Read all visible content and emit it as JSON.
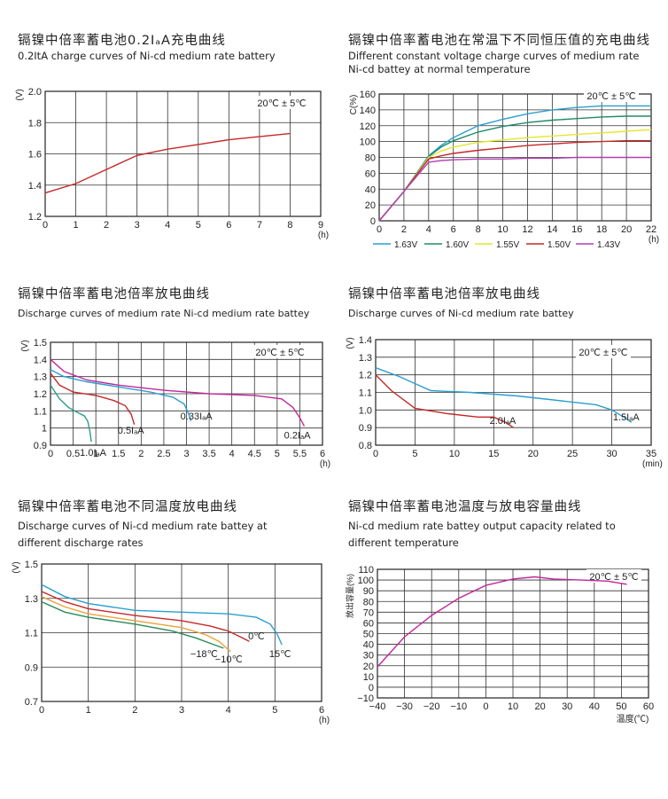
{
  "chart_data": [
    {
      "type": "line",
      "title": "镉镍中倍率蓄电池0.2IₐA充电曲线",
      "subtitle": "0.2ItA charge curves of Ni-cd  medium rate battery",
      "ylabel": "(V)",
      "xunit": "(h)",
      "xlim": [
        0,
        9
      ],
      "ylim": [
        1.2,
        2.0
      ],
      "xticks": [
        "0",
        "1",
        "2",
        "3",
        "4",
        "5",
        "6",
        "7",
        "8",
        "9"
      ],
      "yticks": [
        "1.2",
        "1.4",
        "1.6",
        "1.8",
        "2.0"
      ],
      "annotation": "20℃ ± 5℃",
      "grid": true,
      "series": [
        {
          "color": "#c62828",
          "points": [
            [
              0,
              1.35
            ],
            [
              1,
              1.41
            ],
            [
              2,
              1.5
            ],
            [
              3,
              1.59
            ],
            [
              4,
              1.63
            ],
            [
              5,
              1.66
            ],
            [
              6,
              1.69
            ],
            [
              7,
              1.71
            ],
            [
              8,
              1.73
            ]
          ]
        }
      ]
    },
    {
      "type": "line",
      "title": "镉镍中倍率蓄电池在常温下不同恒压值的充电曲线",
      "subtitle": "Different constant voltage charge curves of medium rate\nNi-cd battey at normal temperature",
      "ylabel": "C(%)",
      "xunit": "(h)",
      "xlim": [
        0,
        22
      ],
      "ylim": [
        0,
        160
      ],
      "xticks": [
        "0",
        "2",
        "4",
        "6",
        "8",
        "10",
        "12",
        "14",
        "16",
        "18",
        "20",
        "22"
      ],
      "yticks": [
        "0",
        "20",
        "40",
        "60",
        "80",
        "100",
        "120",
        "140",
        "160"
      ],
      "annotation": "20℃ ± 5℃",
      "grid": true,
      "series": [
        {
          "name": "1.63V",
          "color": "#2a9fd0",
          "points": [
            [
              0,
              0
            ],
            [
              2,
              37
            ],
            [
              4,
              82
            ],
            [
              5,
              95
            ],
            [
              6,
              105
            ],
            [
              8,
              120
            ],
            [
              10,
              128
            ],
            [
              12,
              135
            ],
            [
              14,
              140
            ],
            [
              16,
              143
            ],
            [
              18,
              145
            ],
            [
              20,
              145
            ],
            [
              22,
              145
            ]
          ]
        },
        {
          "name": "1.60V",
          "color": "#1f8a6a",
          "points": [
            [
              0,
              0
            ],
            [
              2,
              37
            ],
            [
              4,
              81
            ],
            [
              5,
              93
            ],
            [
              6,
              101
            ],
            [
              8,
              112
            ],
            [
              10,
              119
            ],
            [
              12,
              124
            ],
            [
              14,
              127
            ],
            [
              16,
              129
            ],
            [
              18,
              131
            ],
            [
              20,
              132
            ],
            [
              22,
              132
            ]
          ]
        },
        {
          "name": "1.55V",
          "color": "#e6e62e",
          "points": [
            [
              0,
              0
            ],
            [
              2,
              37
            ],
            [
              4,
              80
            ],
            [
              5,
              88
            ],
            [
              6,
              93
            ],
            [
              8,
              99
            ],
            [
              10,
              102
            ],
            [
              12,
              105
            ],
            [
              14,
              107
            ],
            [
              16,
              109
            ],
            [
              18,
              111
            ],
            [
              20,
              113
            ],
            [
              22,
              115
            ]
          ]
        },
        {
          "name": "1.50V",
          "color": "#c62828",
          "points": [
            [
              0,
              0
            ],
            [
              2,
              37
            ],
            [
              4,
              78
            ],
            [
              5,
              82
            ],
            [
              6,
              85
            ],
            [
              8,
              89
            ],
            [
              10,
              92
            ],
            [
              12,
              95
            ],
            [
              14,
              97
            ],
            [
              16,
              99
            ],
            [
              18,
              100
            ],
            [
              20,
              101
            ],
            [
              22,
              101
            ]
          ]
        },
        {
          "name": "1.43V",
          "color": "#b23fb0",
          "points": [
            [
              0,
              0
            ],
            [
              2,
              37
            ],
            [
              4,
              74
            ],
            [
              5,
              76
            ],
            [
              6,
              77
            ],
            [
              8,
              78
            ],
            [
              10,
              78
            ],
            [
              12,
              79
            ],
            [
              14,
              79
            ],
            [
              16,
              80
            ],
            [
              18,
              80
            ],
            [
              20,
              80
            ],
            [
              22,
              80
            ]
          ]
        }
      ]
    },
    {
      "type": "line",
      "title": "镉镍中倍率蓄电池倍率放电曲线",
      "subtitle": "Discharge curves of medium rate Ni-cd  medium rate battey",
      "ylabel": "(V)",
      "xunit": "(h)",
      "xlim": [
        0,
        6
      ],
      "ylim": [
        0.9,
        1.5
      ],
      "xticks": [
        "0",
        "0.5",
        "1",
        "1.5",
        "2",
        "2.5",
        "3",
        "3.5",
        "4",
        "4.5",
        "5",
        "5.5",
        "6"
      ],
      "yticks": [
        "0.9",
        "1",
        "1.1",
        "1.2",
        "1.3",
        "1.4",
        "1.5"
      ],
      "annotation": "20℃ ± 5℃",
      "grid": true,
      "series": [
        {
          "label": "1.0IₐA",
          "color": "#2a9f8a",
          "points": [
            [
              0,
              1.25
            ],
            [
              0.2,
              1.17
            ],
            [
              0.4,
              1.12
            ],
            [
              0.6,
              1.09
            ],
            [
              0.75,
              1.07
            ],
            [
              0.82,
              1.04
            ],
            [
              0.87,
              0.98
            ],
            [
              0.9,
              0.92
            ]
          ]
        },
        {
          "label": "0.5IₐA",
          "color": "#c62828",
          "points": [
            [
              0,
              1.32
            ],
            [
              0.2,
              1.25
            ],
            [
              0.5,
              1.21
            ],
            [
              1,
              1.19
            ],
            [
              1.4,
              1.16
            ],
            [
              1.65,
              1.13
            ],
            [
              1.78,
              1.08
            ],
            [
              1.85,
              1.02
            ]
          ]
        },
        {
          "label": "0.33IₐA",
          "color": "#2a9fd0",
          "points": [
            [
              0,
              1.34
            ],
            [
              0.3,
              1.3
            ],
            [
              0.8,
              1.27
            ],
            [
              1.5,
              1.24
            ],
            [
              2.2,
              1.21
            ],
            [
              2.7,
              1.18
            ],
            [
              2.95,
              1.14
            ],
            [
              3.05,
              1.08
            ],
            [
              3.1,
              1.04
            ]
          ]
        },
        {
          "label": "0.2IₐA",
          "color": "#c2279b",
          "points": [
            [
              0,
              1.4
            ],
            [
              0.3,
              1.33
            ],
            [
              0.8,
              1.28
            ],
            [
              1.5,
              1.25
            ],
            [
              2.5,
              1.22
            ],
            [
              3.5,
              1.2
            ],
            [
              4.5,
              1.19
            ],
            [
              5.1,
              1.17
            ],
            [
              5.35,
              1.12
            ],
            [
              5.5,
              1.06
            ],
            [
              5.6,
              1.01
            ]
          ]
        }
      ]
    },
    {
      "type": "line",
      "title": "镉镍中倍率蓄电池倍率放电曲线",
      "subtitle": "Discharge curves of  Ni-cd medium rate battey",
      "ylabel": "(V)",
      "xunit": "(min)",
      "xlim": [
        0,
        35
      ],
      "ylim": [
        0.8,
        1.4
      ],
      "xticks": [
        "0",
        "5",
        "10",
        "15",
        "20",
        "25",
        "30",
        "35"
      ],
      "yticks": [
        "0.8",
        "0.9",
        "1.0",
        "1.1",
        "1.2",
        "1.3",
        "1.4"
      ],
      "annotation": "20℃ ± 5℃",
      "grid": true,
      "series": [
        {
          "label": "1.5IₐA",
          "color": "#2a9fd0",
          "points": [
            [
              0,
              1.24
            ],
            [
              3,
              1.19
            ],
            [
              7,
              1.11
            ],
            [
              12,
              1.1
            ],
            [
              18,
              1.08
            ],
            [
              24,
              1.05
            ],
            [
              28,
              1.03
            ],
            [
              30,
              1.0
            ],
            [
              31.5,
              0.96
            ],
            [
              32.5,
              0.93
            ]
          ]
        },
        {
          "label": "2.0IₐA",
          "color": "#c62828",
          "points": [
            [
              0,
              1.2
            ],
            [
              2,
              1.11
            ],
            [
              5,
              1.01
            ],
            [
              9,
              0.98
            ],
            [
              13,
              0.96
            ],
            [
              15,
              0.96
            ],
            [
              16.5,
              0.93
            ],
            [
              17.5,
              0.9
            ]
          ]
        }
      ]
    },
    {
      "type": "line",
      "title": "镉镍中倍率蓄电池不同温度放电曲线",
      "subtitle": "Discharge curves of Ni-cd medium rate battey at\ndifferent discharge rates",
      "ylabel": "(V)",
      "xunit": "(h)",
      "xlim": [
        0,
        6
      ],
      "ylim": [
        0.7,
        1.5
      ],
      "xticks": [
        "0",
        "1",
        "2",
        "3",
        "4",
        "5",
        "6"
      ],
      "yticks": [
        "0.7",
        "0.9",
        "1.1",
        "1.3",
        "1.5"
      ],
      "grid": true,
      "series": [
        {
          "label": "15℃",
          "color": "#2a9fd0",
          "points": [
            [
              0,
              1.38
            ],
            [
              0.5,
              1.31
            ],
            [
              1,
              1.27
            ],
            [
              2,
              1.23
            ],
            [
              3,
              1.22
            ],
            [
              4,
              1.21
            ],
            [
              4.6,
              1.19
            ],
            [
              4.9,
              1.15
            ],
            [
              5.05,
              1.09
            ],
            [
              5.15,
              1.03
            ]
          ]
        },
        {
          "label": "0℃",
          "color": "#c62828",
          "points": [
            [
              0,
              1.34
            ],
            [
              0.5,
              1.28
            ],
            [
              1,
              1.24
            ],
            [
              2,
              1.2
            ],
            [
              3,
              1.17
            ],
            [
              3.6,
              1.14
            ],
            [
              4.0,
              1.11
            ],
            [
              4.3,
              1.07
            ],
            [
              4.45,
              1.05
            ]
          ]
        },
        {
          "label": "−10℃",
          "color": "#e8a23a",
          "points": [
            [
              0,
              1.31
            ],
            [
              0.5,
              1.25
            ],
            [
              1,
              1.21
            ],
            [
              2,
              1.17
            ],
            [
              3,
              1.13
            ],
            [
              3.5,
              1.09
            ],
            [
              3.8,
              1.05
            ],
            [
              4.05,
              0.99
            ]
          ]
        },
        {
          "label": "−18℃",
          "color": "#2a8a5a",
          "points": [
            [
              0,
              1.28
            ],
            [
              0.5,
              1.22
            ],
            [
              1,
              1.19
            ],
            [
              2,
              1.15
            ],
            [
              2.8,
              1.11
            ],
            [
              3.3,
              1.07
            ],
            [
              3.7,
              1.03
            ],
            [
              3.9,
              1.01
            ]
          ]
        }
      ]
    },
    {
      "type": "line",
      "title": "镉镍中倍率蓄电池温度与放电容量曲线",
      "subtitle": "Ni-cd medium rate battey output capacity related to\ndifferent temperature",
      "ylabel": "放出容量(%)",
      "xlabel": "温度(℃)",
      "xlim": [
        -40,
        60
      ],
      "ylim": [
        -10,
        110
      ],
      "xticks": [
        "−40",
        "−30",
        "−20",
        "−10",
        "0",
        "10",
        "20",
        "30",
        "40",
        "50",
        "60"
      ],
      "yticks": [
        "−10",
        "0",
        "10",
        "20",
        "30",
        "40",
        "50",
        "60",
        "70",
        "80",
        "90",
        "100",
        "110"
      ],
      "annotation": "20℃ ± 5℃",
      "grid": true,
      "series": [
        {
          "color": "#c2279b",
          "points": [
            [
              -40,
              19
            ],
            [
              -30,
              47
            ],
            [
              -20,
              67
            ],
            [
              -10,
              83
            ],
            [
              0,
              95
            ],
            [
              10,
              101
            ],
            [
              18,
              103
            ],
            [
              25,
              101
            ],
            [
              35,
              100
            ],
            [
              45,
              99
            ],
            [
              52,
              96
            ]
          ]
        }
      ]
    }
  ]
}
